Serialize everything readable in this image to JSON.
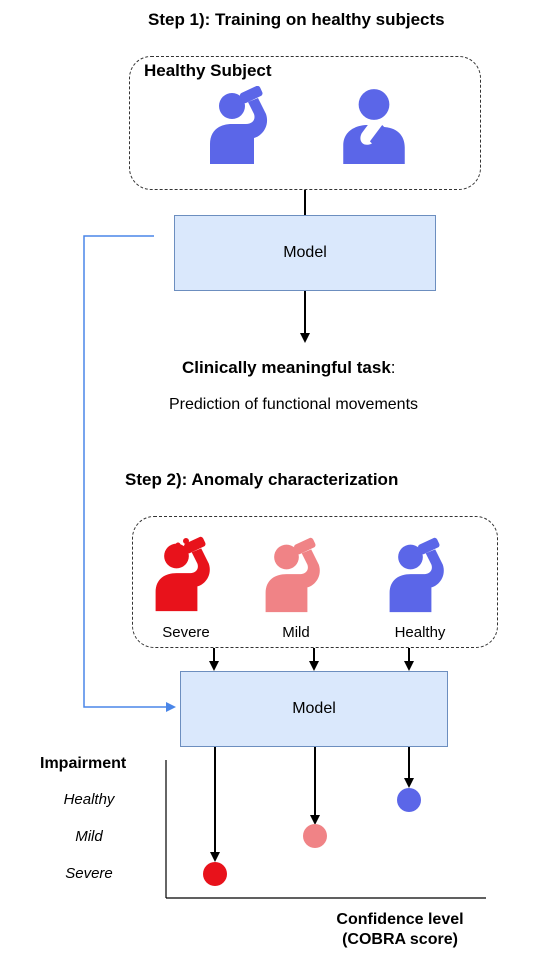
{
  "step1": {
    "title": "Step 1): Training on healthy subjects"
  },
  "healthy_box": {
    "label": "Healthy Subject"
  },
  "model1": {
    "label": "Model"
  },
  "task": {
    "title_bold": "Clinically meaningful task",
    "title_colon": ":",
    "subtitle": "Prediction of functional movements"
  },
  "step2": {
    "title": "Step 2): Anomaly characterization"
  },
  "subjects": [
    {
      "label": "Severe",
      "color": "#e8121b"
    },
    {
      "label": "Mild",
      "color": "#f08386"
    },
    {
      "label": "Healthy",
      "color": "#5b66e8"
    }
  ],
  "model2": {
    "label": "Model"
  },
  "impairment": {
    "title": "Impairment",
    "levels": [
      "Healthy",
      "Mild",
      "Severe"
    ]
  },
  "confidence": {
    "line1": "Confidence level",
    "line2": "(COBRA score)"
  },
  "colors": {
    "model_fill": "#dae8fc",
    "model_border": "#6c8ebf",
    "feedback_line": "#4a86e8"
  }
}
